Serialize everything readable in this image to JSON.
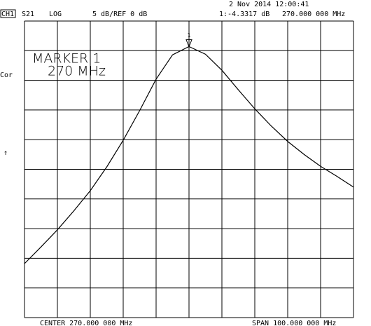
{
  "chart_data": {
    "type": "line",
    "channel": "CH1",
    "parameter": "S21",
    "format": "LOG",
    "scale_text": "5 dB/REF 0 dB",
    "datetime": "2 Nov 2014  12:00:41",
    "marker_readout": "1:-4.3317 dB",
    "marker_freq_readout": "270.000 000 MHz",
    "marker_title": "MARKER 1",
    "marker_freq": "270 MHz",
    "side_label": "Cor",
    "side_arrow": "↑",
    "center_text": "CENTER 270.000 000 MHz",
    "span_text": "SPAN 100.000 000 MHz",
    "marker": {
      "label": "1",
      "x": 270,
      "value": -4.3317
    },
    "x": [
      220,
      225,
      230,
      235,
      240,
      245,
      250,
      255,
      260,
      265,
      270,
      275,
      280,
      285,
      290,
      295,
      300,
      305,
      310,
      315,
      320
    ],
    "series": [
      {
        "color": "#000000",
        "values": [
          -40.9,
          -38.1,
          -35.2,
          -32.0,
          -28.6,
          -24.6,
          -20.1,
          -15.1,
          -9.8,
          -5.7,
          -4.3,
          -5.6,
          -8.3,
          -11.6,
          -14.8,
          -17.7,
          -20.3,
          -22.5,
          -24.5,
          -26.2,
          -28.0
        ]
      }
    ],
    "xlim": [
      220,
      320
    ],
    "xticks": [
      220,
      230,
      240,
      250,
      260,
      270,
      280,
      290,
      300,
      310,
      320
    ],
    "ylim": [
      -50,
      0
    ],
    "yticks": [
      -50,
      -45,
      -40,
      -35,
      -30,
      -25,
      -20,
      -15,
      -10,
      -5,
      0
    ],
    "grid": true
  }
}
